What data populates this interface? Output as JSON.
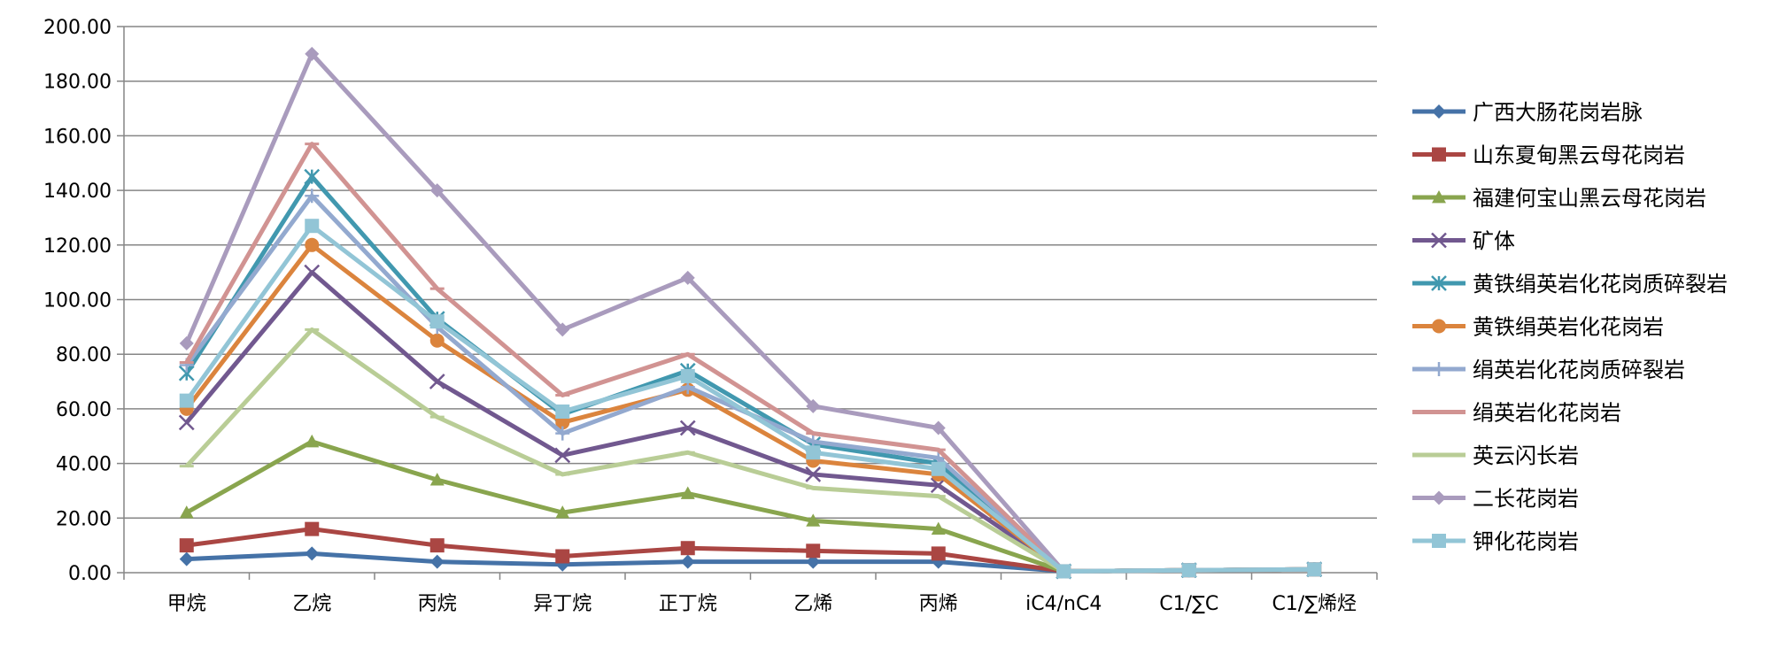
{
  "chart_data": {
    "type": "line",
    "title": "",
    "xlabel": "",
    "ylabel": "",
    "ylim": [
      0,
      200
    ],
    "ytick_step": 20,
    "ytick_format_decimals": 2,
    "grid": true,
    "legend_position": "right",
    "categories": [
      "甲烷",
      "乙烷",
      "丙烷",
      "异丁烷",
      "正丁烷",
      "乙烯",
      "丙烯",
      "iC4/nC4",
      "C1/∑C",
      "C1/∑烯烃"
    ],
    "series": [
      {
        "name": "广西大肠花岗岩脉",
        "color": "#4572A7",
        "marker": "diamond",
        "values": [
          5,
          7,
          4,
          3,
          4,
          4,
          4,
          0.5,
          0.9,
          1.2
        ]
      },
      {
        "name": "山东夏甸黑云母花岗岩",
        "color": "#AA4643",
        "marker": "square",
        "values": [
          10,
          16,
          10,
          6,
          9,
          8,
          7,
          0.5,
          0.9,
          1.2
        ]
      },
      {
        "name": "福建何宝山黑云母花岗岩",
        "color": "#89A54E",
        "marker": "triangle",
        "values": [
          22,
          48,
          34,
          22,
          29,
          19,
          16,
          0.5,
          0.9,
          1.2
        ]
      },
      {
        "name": "矿体",
        "color": "#71588F",
        "marker": "x",
        "values": [
          55,
          110,
          70,
          43,
          53,
          36,
          32,
          0.5,
          0.9,
          1.2
        ]
      },
      {
        "name": "黄铁绢英岩化花岗质碎裂岩",
        "color": "#4198AF",
        "marker": "star",
        "values": [
          73,
          145,
          93,
          58,
          74,
          47,
          40,
          0.5,
          0.9,
          1.2
        ]
      },
      {
        "name": "黄铁绢英岩化花岗岩",
        "color": "#DB843D",
        "marker": "circle",
        "values": [
          60,
          120,
          85,
          55,
          67,
          41,
          36,
          0.5,
          0.9,
          1.2
        ]
      },
      {
        "name": "绢英岩化花岗质碎裂岩",
        "color": "#93A9CF",
        "marker": "plus",
        "values": [
          76,
          138,
          90,
          51,
          68,
          48,
          42,
          0.5,
          0.9,
          1.2
        ]
      },
      {
        "name": "绢英岩化花岗岩",
        "color": "#D19392",
        "marker": "dash",
        "values": [
          77,
          157,
          104,
          65,
          80,
          51,
          45,
          0.5,
          0.9,
          1.2
        ]
      },
      {
        "name": "英云闪长岩",
        "color": "#B9CD96",
        "marker": "dash",
        "values": [
          39,
          89,
          57,
          36,
          44,
          31,
          28,
          0.5,
          0.9,
          1.2
        ]
      },
      {
        "name": "二长花岗岩",
        "color": "#A99BBD",
        "marker": "diamond",
        "values": [
          84,
          190,
          140,
          89,
          108,
          61,
          53,
          0.5,
          0.9,
          1.2
        ]
      },
      {
        "name": "钾化花岗岩",
        "color": "#92C5D6",
        "marker": "square",
        "values": [
          63,
          127,
          92,
          59,
          72,
          44,
          38,
          0.5,
          0.9,
          1.2
        ]
      }
    ]
  }
}
